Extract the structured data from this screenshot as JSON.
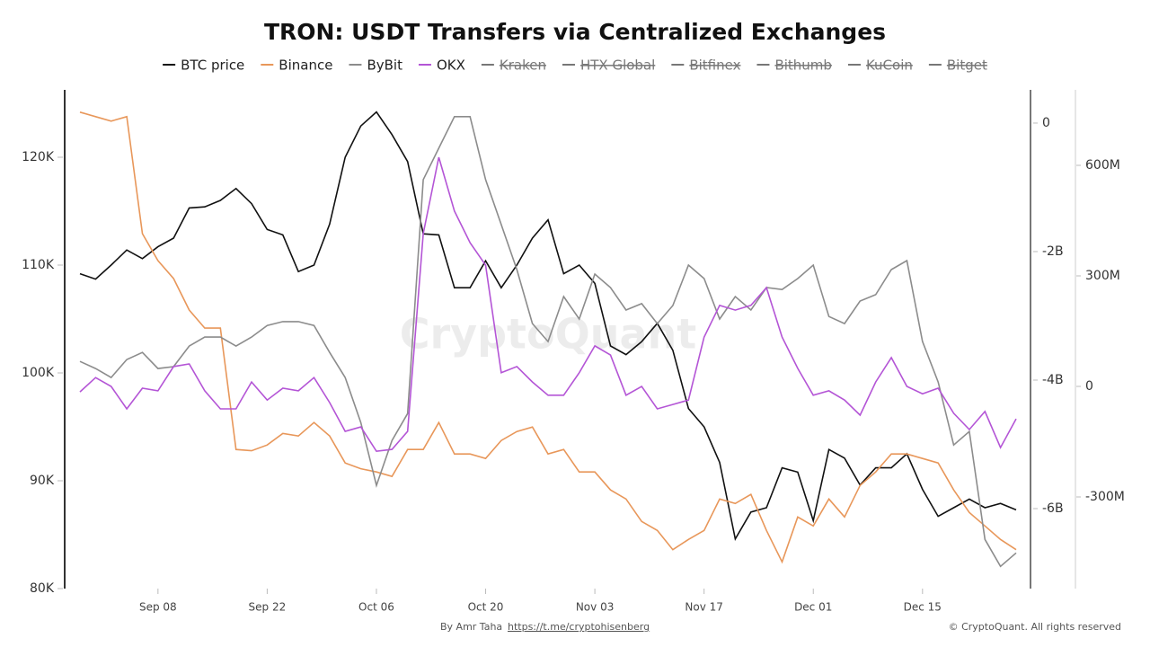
{
  "chart_data": {
    "type": "line",
    "title": "TRON: USDT Transfers via Centralized Exchanges",
    "watermark": "CryptoQuant",
    "credit": "By Amr Taha",
    "link": "https://t.me/cryptohisenberg",
    "copyright": "© CryptoQuant. All rights reserved",
    "x": [
      "Aug 29",
      "Aug 31",
      "Sep 02",
      "Sep 04",
      "Sep 06",
      "Sep 08",
      "Sep 10",
      "Sep 12",
      "Sep 14",
      "Sep 16",
      "Sep 18",
      "Sep 20",
      "Sep 22",
      "Sep 24",
      "Sep 26",
      "Sep 28",
      "Sep 30",
      "Oct 02",
      "Oct 04",
      "Oct 06",
      "Oct 08",
      "Oct 10",
      "Oct 12",
      "Oct 14",
      "Oct 16",
      "Oct 18",
      "Oct 20",
      "Oct 22",
      "Oct 24",
      "Oct 26",
      "Oct 28",
      "Oct 30",
      "Nov 01",
      "Nov 03",
      "Nov 05",
      "Nov 07",
      "Nov 09",
      "Nov 11",
      "Nov 13",
      "Nov 15",
      "Nov 17",
      "Nov 19",
      "Nov 21",
      "Nov 23",
      "Nov 25",
      "Nov 27",
      "Nov 29",
      "Dec 01",
      "Dec 03",
      "Dec 05",
      "Dec 07",
      "Dec 09",
      "Dec 11",
      "Dec 13",
      "Dec 15",
      "Dec 17",
      "Dec 19",
      "Dec 21",
      "Dec 23",
      "Dec 25",
      "Dec 27"
    ],
    "xticks": [
      "Sep 08",
      "Sep 22",
      "Oct 06",
      "Oct 20",
      "Nov 03",
      "Nov 17",
      "Dec 01",
      "Dec 15"
    ],
    "ylim": [
      80000,
      126250
    ],
    "yticks": [
      {
        "value": 80000,
        "label": "80K"
      },
      {
        "value": 90000,
        "label": "90K"
      },
      {
        "value": 100000,
        "label": "100K"
      },
      {
        "value": 110000,
        "label": "110K"
      },
      {
        "value": 120000,
        "label": "120K"
      }
    ],
    "y2lim": [
      -7245000000.0,
      517000000.0
    ],
    "y2ticks": [
      0,
      {
        "value": -2000000000.0,
        "label": "-2B"
      },
      {
        "value": -4000000000.0,
        "label": "-4B"
      },
      {
        "value": -6000000000.0,
        "label": "-6B"
      }
    ],
    "y3lim": [
      -548800000.0,
      804900000.0
    ],
    "y3ticks": [
      {
        "value": -300000000.0,
        "label": "-300M"
      },
      0,
      {
        "value": 300000000.0,
        "label": "300M"
      },
      {
        "value": 600000000.0,
        "label": "600M"
      }
    ],
    "series": [
      {
        "name": "BTC price",
        "color": "#111111",
        "axis": "y",
        "values": [
          109200,
          108700,
          110000,
          111400,
          110600,
          111700,
          112500,
          115300,
          115400,
          116000,
          117100,
          115700,
          113300,
          112800,
          109400,
          110000,
          113800,
          120000,
          122900,
          124200,
          122100,
          119600,
          112900,
          112800,
          107900,
          107900,
          110400,
          107900,
          110000,
          112500,
          114200,
          109200,
          110000,
          108300,
          102500,
          101700,
          102900,
          104600,
          102100,
          96700,
          95000,
          91700,
          84600,
          87100,
          87500,
          91200,
          90800,
          86300,
          92900,
          92100,
          89600,
          91200,
          91200,
          92500,
          89200,
          86700,
          87500,
          88300,
          87500,
          87900,
          87300
        ]
      },
      {
        "name": "Binance",
        "color": "#e8975a",
        "axis": "y2",
        "values": [
          170000000.0,
          100000000.0,
          30000000.0,
          100000000.0,
          -1720000000.0,
          -2140000000.0,
          -2420000000.0,
          -2910000000.0,
          -3190000000.0,
          -3190000000.0,
          -5080000000.0,
          -5100000000.0,
          -5010000000.0,
          -4830000000.0,
          -4870000000.0,
          -4660000000.0,
          -4870000000.0,
          -5290000000.0,
          -5380000000.0,
          -5430000000.0,
          -5500000000.0,
          -5080000000.0,
          -5080000000.0,
          -4660000000.0,
          -5150000000.0,
          -5150000000.0,
          -5220000000.0,
          -4940000000.0,
          -4800000000.0,
          -4730000000.0,
          -5150000000.0,
          -5080000000.0,
          -5430000000.0,
          -5430000000.0,
          -5710000000.0,
          -5850000000.0,
          -6200000000.0,
          -6340000000.0,
          -6640000000.0,
          -6480000000.0,
          -6340000000.0,
          -5850000000.0,
          -5920000000.0,
          -5780000000.0,
          -6340000000.0,
          -6830000000.0,
          -6130000000.0,
          -6270000000.0,
          -5850000000.0,
          -6130000000.0,
          -5640000000.0,
          -5430000000.0,
          -5150000000.0,
          -5150000000.0,
          -5220000000.0,
          -5290000000.0,
          -5710000000.0,
          -6060000000.0,
          -6270000000.0,
          -6480000000.0,
          -6640000000.0
        ]
      },
      {
        "name": "ByBit",
        "color": "#8c8c8c",
        "axis": "y2",
        "values": [
          -3710000000.0,
          -3820000000.0,
          -3960000000.0,
          -3680000000.0,
          -3570000000.0,
          -3820000000.0,
          -3790000000.0,
          -3470000000.0,
          -3330000000.0,
          -3330000000.0,
          -3470000000.0,
          -3330000000.0,
          -3150000000.0,
          -3090000000.0,
          -3090000000.0,
          -3150000000.0,
          -3570000000.0,
          -3960000000.0,
          -4660000000.0,
          -5640000000.0,
          -4940000000.0,
          -4520000000.0,
          -880000000.0,
          -390000000.0,
          100000000.0,
          100000000.0,
          -880000000.0,
          -1580000000.0,
          -2280000000.0,
          -3120000000.0,
          -3400000000.0,
          -2700000000.0,
          -3050000000.0,
          -2350000000.0,
          -2560000000.0,
          -2910000000.0,
          -2810000000.0,
          -3120000000.0,
          -2840000000.0,
          -2210000000.0,
          -2420000000.0,
          -3050000000.0,
          -2700000000.0,
          -2910000000.0,
          -2560000000.0,
          -2590000000.0,
          -2420000000.0,
          -2210000000.0,
          -3010000000.0,
          -3120000000.0,
          -2770000000.0,
          -2670000000.0,
          -2280000000.0,
          -2140000000.0,
          -3400000000.0,
          -4030000000.0,
          -5010000000.0,
          -4800000000.0,
          -6480000000.0,
          -6900000000.0,
          -6690000000.0
        ]
      },
      {
        "name": "OKX",
        "color": "#b455d6",
        "axis": "y3",
        "values": [
          -15000000.0,
          24000000.0,
          0,
          -61000000.0,
          -5000000.0,
          -12000000.0,
          54000000.0,
          61000000.0,
          -12000000.0,
          -61000000.0,
          -61000000.0,
          12000000.0,
          -37000000.0,
          -5000000.0,
          -12000000.0,
          24000000.0,
          -44000000.0,
          -122000000.0,
          -110000000.0,
          -176000000.0,
          -171000000.0,
          -122000000.0,
          415000000.0,
          622000000.0,
          476000000.0,
          390000000.0,
          329000000.0,
          37000000.0,
          54000000.0,
          12000000.0,
          -24000000.0,
          -24000000.0,
          37000000.0,
          110000000.0,
          85000000.0,
          -24000000.0,
          0,
          -61000000.0,
          -49000000.0,
          -37000000.0,
          134000000.0,
          220000000.0,
          207000000.0,
          220000000.0,
          268000000.0,
          134000000.0,
          49000000.0,
          -24000000.0,
          -12000000.0,
          -37000000.0,
          -78000000.0,
          12000000.0,
          78000000.0,
          0,
          -20000000.0,
          -5000000.0,
          -73000000.0,
          -117000000.0,
          -68000000.0,
          -166000000.0,
          -88000000.0
        ]
      },
      {
        "name": "Kraken",
        "color": "#777777",
        "visible": false
      },
      {
        "name": "HTX Global",
        "color": "#777777",
        "visible": false
      },
      {
        "name": "Bitfinex",
        "color": "#777777",
        "visible": false
      },
      {
        "name": "Bithumb",
        "color": "#777777",
        "visible": false
      },
      {
        "name": "KuCoin",
        "color": "#777777",
        "visible": false
      },
      {
        "name": "Bitget",
        "color": "#777777",
        "visible": false
      }
    ]
  }
}
